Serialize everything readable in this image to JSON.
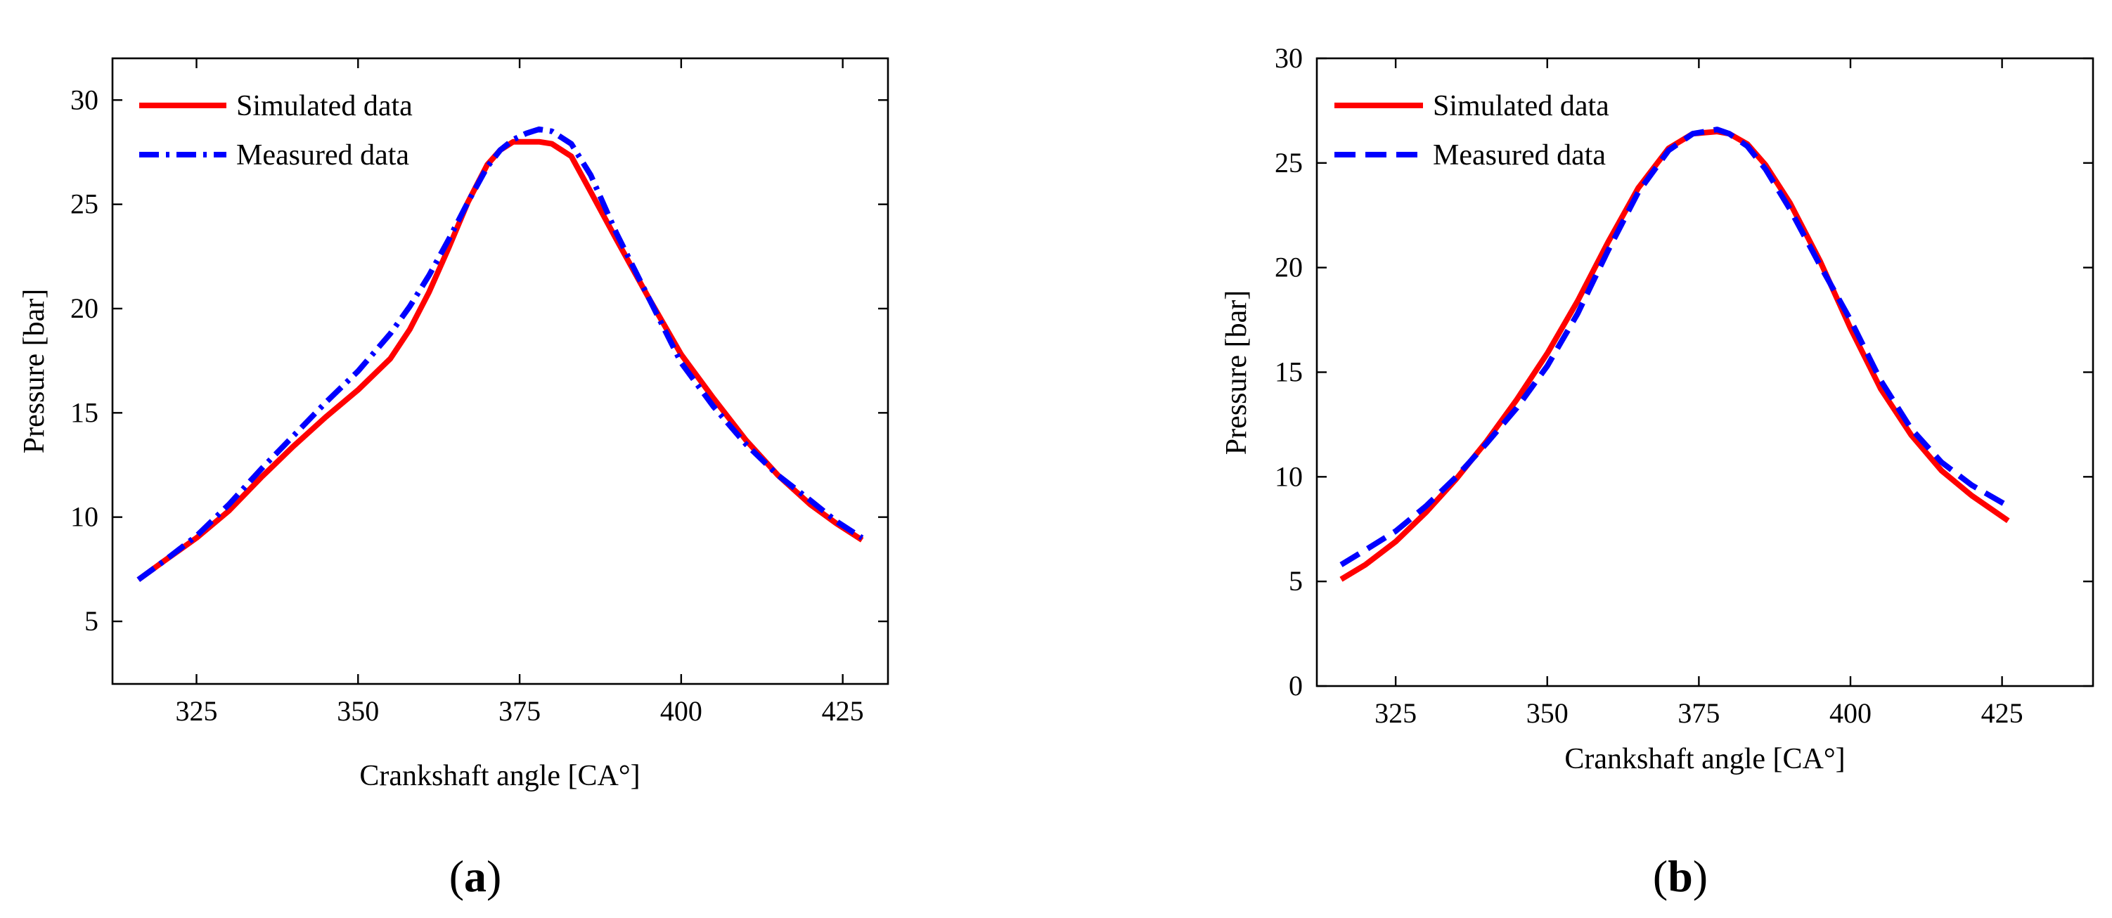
{
  "chart_data": [
    {
      "type": "line",
      "panel_label": "a",
      "xlabel": "Crankshaft angle [CA°]",
      "ylabel": "Pressure [bar]",
      "xlim": [
        312,
        432
      ],
      "ylim": [
        2,
        32
      ],
      "xticks": [
        325,
        350,
        375,
        400,
        425
      ],
      "yticks": [
        5,
        10,
        15,
        20,
        25,
        30
      ],
      "legend": {
        "position": "top-left"
      },
      "series": [
        {
          "name": "Simulated data",
          "color": "#ff0000",
          "style": "solid",
          "x": [
            316,
            320,
            325,
            330,
            335,
            340,
            345,
            350,
            355,
            358,
            361,
            364,
            367,
            370,
            372,
            374,
            376,
            378,
            380,
            383,
            386,
            390,
            395,
            400,
            405,
            410,
            415,
            420,
            424,
            428
          ],
          "y": [
            7.0,
            7.9,
            9.0,
            10.3,
            11.9,
            13.4,
            14.8,
            16.1,
            17.6,
            19.0,
            20.8,
            22.9,
            25.1,
            26.9,
            27.6,
            28.0,
            28.0,
            28.0,
            27.9,
            27.3,
            25.6,
            23.3,
            20.5,
            17.8,
            15.7,
            13.7,
            12.0,
            10.6,
            9.7,
            8.9
          ]
        },
        {
          "name": "Measured data",
          "color": "#0000ff",
          "style": "dashdot",
          "x": [
            316,
            320,
            325,
            330,
            335,
            340,
            345,
            350,
            355,
            358,
            361,
            364,
            367,
            370,
            372,
            374,
            376,
            378,
            380,
            383,
            386,
            390,
            395,
            400,
            405,
            410,
            415,
            420,
            424,
            428
          ],
          "y": [
            7.0,
            7.9,
            9.1,
            10.6,
            12.3,
            13.9,
            15.5,
            17.0,
            18.8,
            20.1,
            21.6,
            23.3,
            25.1,
            26.8,
            27.6,
            28.1,
            28.4,
            28.6,
            28.5,
            27.9,
            26.4,
            23.6,
            20.5,
            17.4,
            15.3,
            13.5,
            12.0,
            10.8,
            9.8,
            9.0
          ]
        }
      ]
    },
    {
      "type": "line",
      "panel_label": "b",
      "xlabel": "Crankshaft angle [CA°]",
      "ylabel": "Pressure [bar]",
      "xlim": [
        312,
        440
      ],
      "ylim": [
        0,
        30
      ],
      "xticks": [
        325,
        350,
        375,
        400,
        425
      ],
      "yticks": [
        0,
        5,
        10,
        15,
        20,
        25,
        30
      ],
      "legend": {
        "position": "top-left"
      },
      "series": [
        {
          "name": "Simulated data",
          "color": "#ff0000",
          "style": "solid",
          "x": [
            316,
            320,
            325,
            330,
            335,
            340,
            345,
            350,
            355,
            360,
            365,
            370,
            374,
            378,
            380,
            383,
            386,
            390,
            395,
            400,
            405,
            410,
            415,
            420,
            426
          ],
          "y": [
            5.1,
            5.8,
            6.9,
            8.3,
            9.9,
            11.7,
            13.7,
            15.9,
            18.4,
            21.2,
            23.8,
            25.7,
            26.4,
            26.5,
            26.4,
            25.9,
            24.9,
            23.1,
            20.3,
            17.1,
            14.2,
            12.0,
            10.3,
            9.1,
            7.9
          ]
        },
        {
          "name": "Measured data",
          "color": "#0000ff",
          "style": "dashed",
          "x": [
            316,
            320,
            325,
            330,
            335,
            340,
            345,
            350,
            355,
            360,
            365,
            370,
            374,
            378,
            380,
            383,
            386,
            390,
            395,
            400,
            405,
            410,
            415,
            420,
            426
          ],
          "y": [
            5.8,
            6.5,
            7.4,
            8.6,
            10.0,
            11.6,
            13.3,
            15.3,
            17.8,
            20.8,
            23.6,
            25.6,
            26.4,
            26.6,
            26.4,
            25.8,
            24.7,
            22.8,
            20.1,
            17.5,
            14.6,
            12.3,
            10.7,
            9.6,
            8.6
          ]
        }
      ]
    }
  ]
}
